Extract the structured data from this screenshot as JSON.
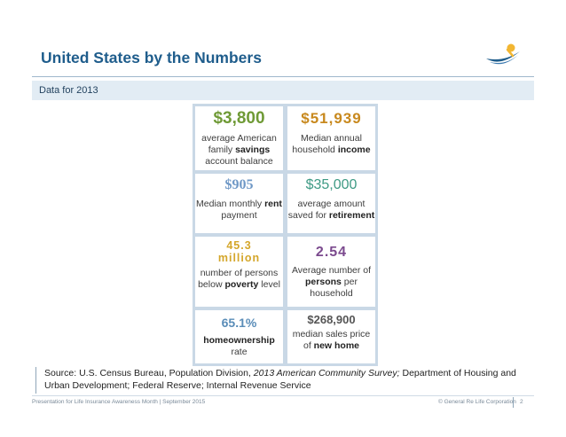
{
  "header": {
    "title": "United States by the Numbers",
    "subtitle": "Data for 2013"
  },
  "stats": {
    "savings": {
      "value": "$3,800",
      "pre": "average American family ",
      "bold": "savings",
      "post": " account balance"
    },
    "income": {
      "value": "$51,939",
      "pre": "Median annual household ",
      "bold": "income",
      "post": ""
    },
    "rent": {
      "value": "$905",
      "pre": "Median monthly ",
      "bold": "rent",
      "post": " payment"
    },
    "retirement": {
      "value": "$35,000",
      "pre": "average amount saved for ",
      "bold": "retirement",
      "post": ""
    },
    "poverty": {
      "value": "45.3 million",
      "pre": "number of persons below ",
      "bold": "poverty",
      "post": " level"
    },
    "persons": {
      "value": "2.54",
      "pre": "Average number of ",
      "bold": "persons",
      "post": " per household"
    },
    "homeownership": {
      "value": "65.1%",
      "pre": "",
      "bold": "homeownership",
      "post": " rate"
    },
    "home_price": {
      "value": "$268,900",
      "pre": "median sales price of ",
      "bold": "new home",
      "post": ""
    }
  },
  "source": {
    "pre": "Source: U.S. Census Bureau, Population Division, ",
    "italic": "2013 American Community Survey;",
    "post": " Department of Housing and Urban Development; Federal Reserve; Internal Revenue Service"
  },
  "footer": {
    "left": "Presentation for Life Insurance Awareness Month | September 2015",
    "right": "© General Re Life Corporation",
    "page": "2"
  },
  "colors": {
    "title": "#1f5d8c",
    "savings": "#6f9a36",
    "income": "#c8891e",
    "rent": "#6f98c6",
    "retirement": "#3e9a84",
    "poverty": "#d4a62a",
    "persons": "#7b4a8e",
    "homeownership": "#5a8db8",
    "home_price": "#555555"
  }
}
